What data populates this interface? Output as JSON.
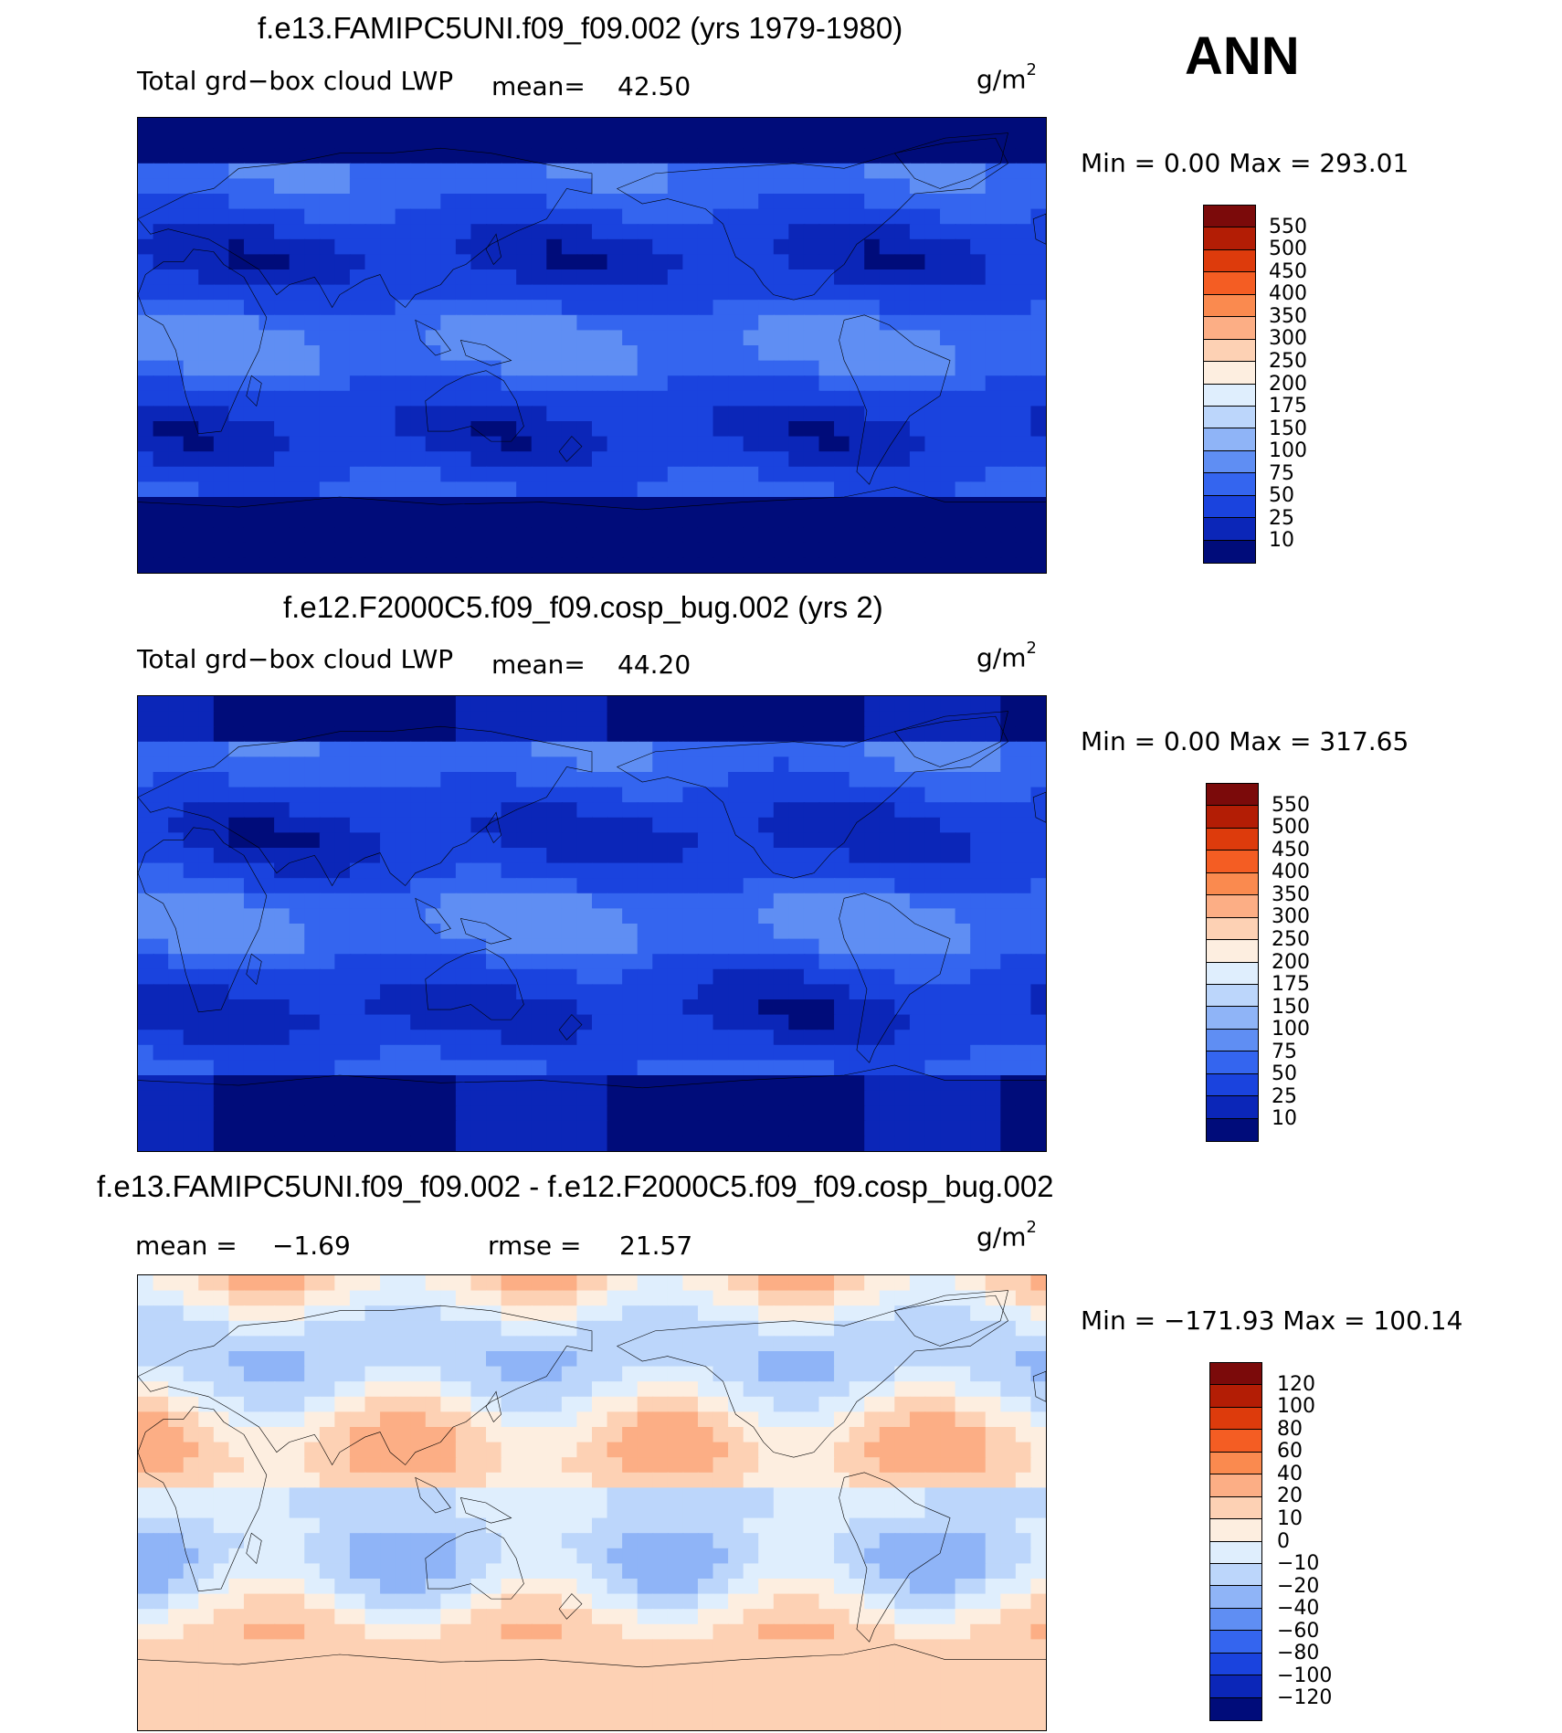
{
  "season": "ANN",
  "panels": [
    {
      "title": "f.e13.FAMIPC5UNI.f09_f09.002 (yrs 1979-1980)",
      "variable": "Total grd−box cloud LWP",
      "mean_label": "mean=",
      "mean_value": "42.50",
      "unit_base": "g/m",
      "unit_exp": "2",
      "minmax": "Min =    0.00 Max = 293.01",
      "colorbar": {
        "labels": [
          "550",
          "500",
          "450",
          "400",
          "350",
          "300",
          "250",
          "200",
          "175",
          "150",
          "100",
          "75",
          "50",
          "25",
          "10"
        ],
        "colors": [
          "#7b0a0a",
          "#b31d05",
          "#dd3b0c",
          "#f45d23",
          "#fa8a4f",
          "#fcae85",
          "#fdd1b4",
          "#fdeee0",
          "#dfeefd",
          "#bcd6fb",
          "#8fb4f7",
          "#5f8ef3",
          "#3465ef",
          "#1a43de",
          "#0b26b8",
          "#000c7a"
        ]
      },
      "field": "lwp_control"
    },
    {
      "title": "f.e12.F2000C5.f09_f09.cosp_bug.002 (yrs 2)",
      "variable": "Total grd−box cloud LWP",
      "mean_label": "mean=",
      "mean_value": "44.20",
      "unit_base": "g/m",
      "unit_exp": "2",
      "minmax": "Min =    0.00 Max = 317.65",
      "colorbar": {
        "labels": [
          "550",
          "500",
          "450",
          "400",
          "350",
          "300",
          "250",
          "200",
          "175",
          "150",
          "100",
          "75",
          "50",
          "25",
          "10"
        ],
        "colors": [
          "#7b0a0a",
          "#b31d05",
          "#dd3b0c",
          "#f45d23",
          "#fa8a4f",
          "#fcae85",
          "#fdd1b4",
          "#fdeee0",
          "#dfeefd",
          "#bcd6fb",
          "#8fb4f7",
          "#5f8ef3",
          "#3465ef",
          "#1a43de",
          "#0b26b8",
          "#000c7a"
        ]
      },
      "field": "lwp_test"
    },
    {
      "title": "f.e13.FAMIPC5UNI.f09_f09.002 - f.e12.F2000C5.f09_f09.cosp_bug.002",
      "mean_label": "mean =",
      "mean_value": "−1.69",
      "rmse_label": "rmse =",
      "rmse_value": "21.57",
      "unit_base": "g/m",
      "unit_exp": "2",
      "minmax": "Min = −171.93 Max = 100.14",
      "colorbar": {
        "labels": [
          "120",
          "100",
          "80",
          "60",
          "40",
          "20",
          "10",
          "0",
          "−10",
          "−20",
          "−40",
          "−60",
          "−80",
          "−100",
          "−120"
        ],
        "colors": [
          "#7b0a0a",
          "#b31d05",
          "#dd3b0c",
          "#f45d23",
          "#fa8a4f",
          "#fcae85",
          "#fdd1b4",
          "#fdeee0",
          "#dfeefd",
          "#bcd6fb",
          "#8fb4f7",
          "#5f8ef3",
          "#3465ef",
          "#1a43de",
          "#0b26b8",
          "#000c7a"
        ]
      },
      "field": "lwp_diff"
    }
  ]
}
